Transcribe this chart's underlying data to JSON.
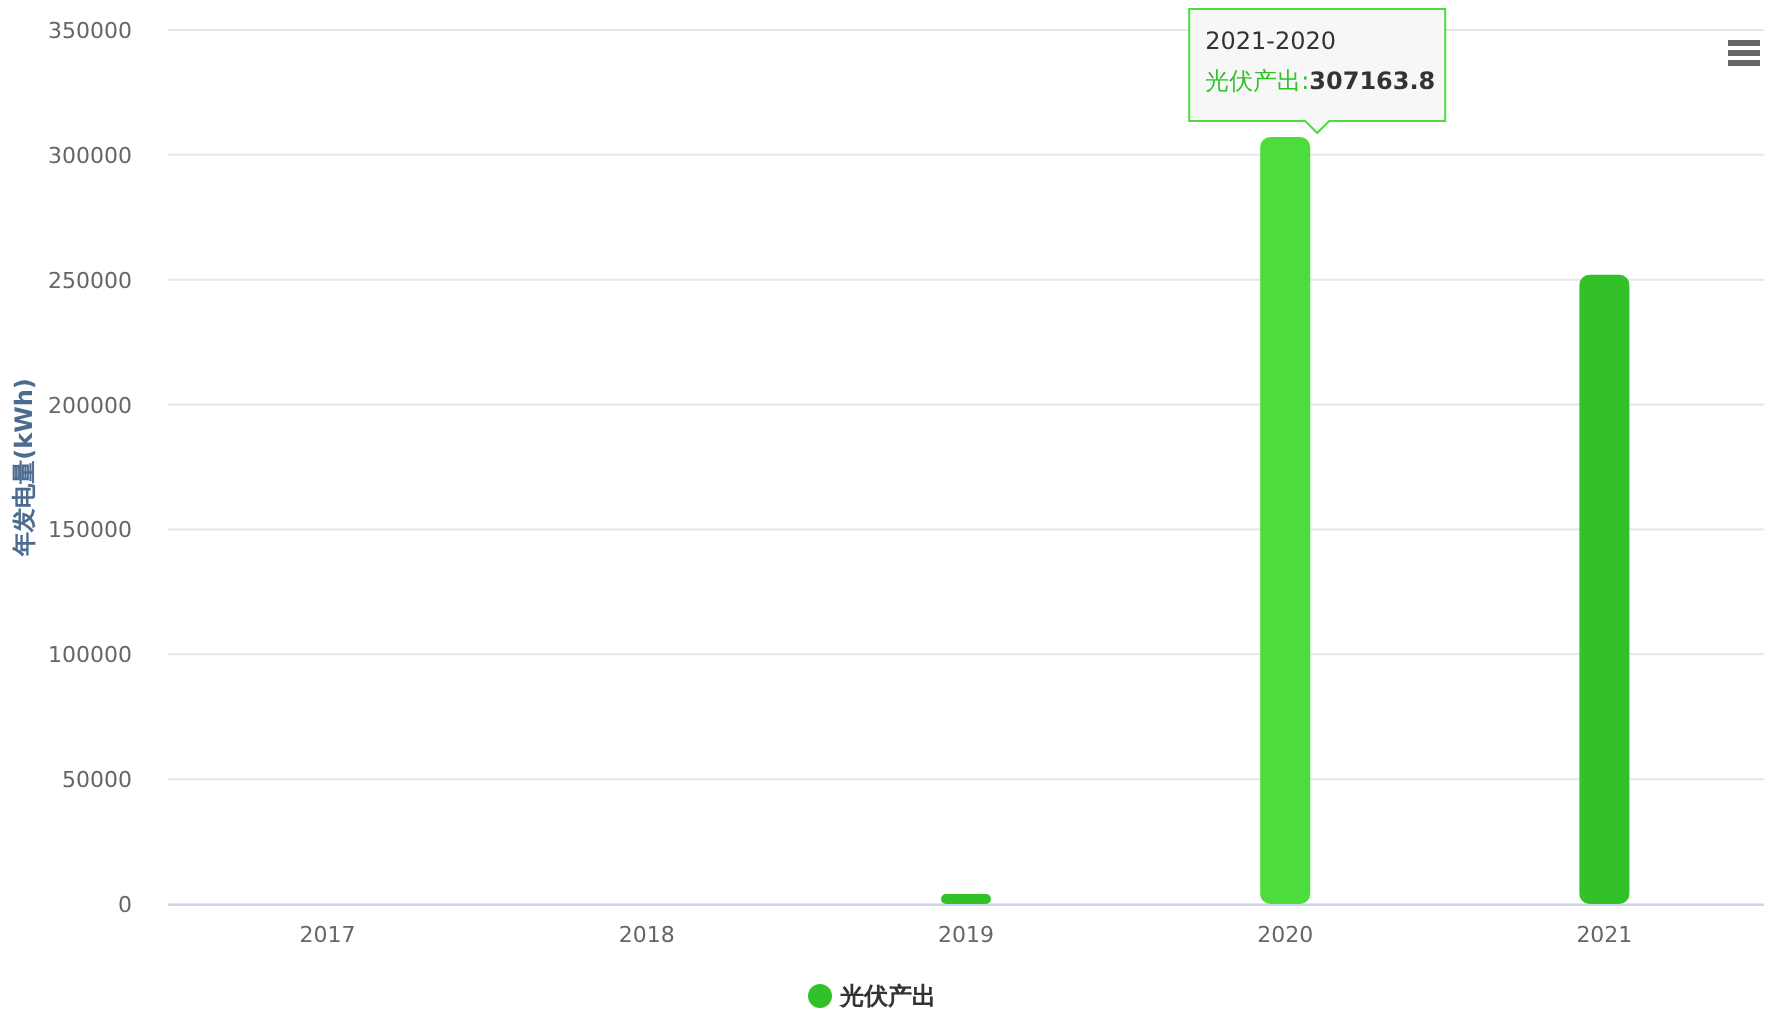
{
  "chart_data": {
    "type": "bar",
    "ylabel": "年发电量(kWh)",
    "categories": [
      "2017",
      "2018",
      "2019",
      "2020",
      "2021"
    ],
    "series": [
      {
        "name": "光伏产出",
        "color": "#33c12a",
        "colors": [
          "#33c12a",
          "#33c12a",
          "#33c12a",
          "#4cdd3c",
          "#33c12a"
        ],
        "values": [
          0,
          0,
          4000,
          307163.8,
          252000
        ]
      }
    ],
    "ylim": [
      0,
      350000
    ],
    "yticks": [
      0,
      50000,
      100000,
      150000,
      200000,
      250000,
      300000,
      350000
    ],
    "grid": "y",
    "legend": "bottom",
    "annotations": [
      "2021-2020",
      "光伏产出:**307163.8**"
    ]
  }
}
